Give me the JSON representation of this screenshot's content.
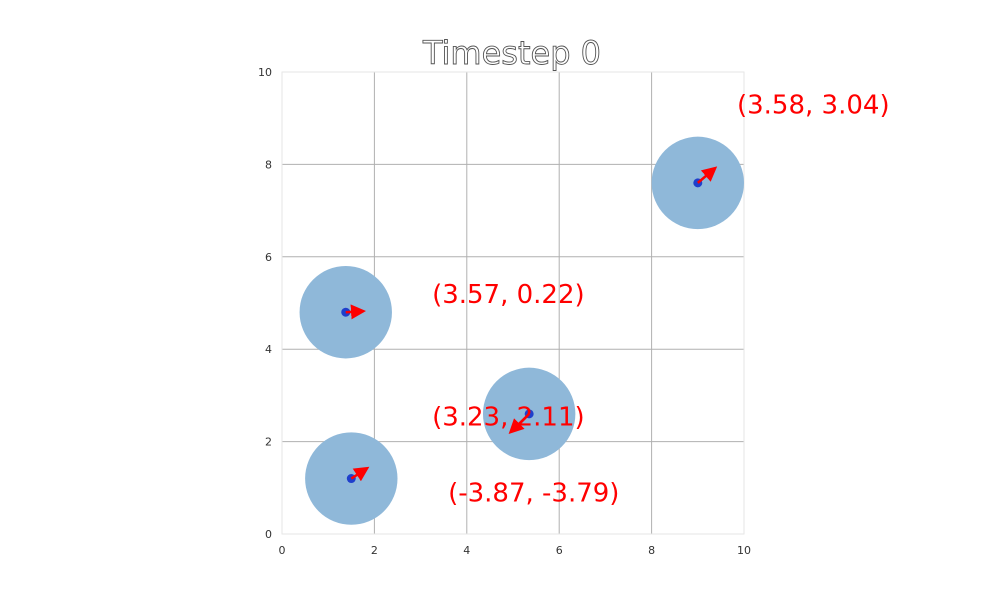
{
  "chart_data": {
    "type": "scatter",
    "title": "Timestep 0",
    "xlabel": "",
    "ylabel": "",
    "xlim": [
      0,
      10
    ],
    "ylim": [
      0,
      10
    ],
    "xticks": [
      "0",
      "2",
      "4",
      "6",
      "8",
      "10"
    ],
    "yticks": [
      "0",
      "2",
      "4",
      "6",
      "8",
      "10"
    ],
    "grid": true,
    "colors": {
      "disc": "#8fb8d9",
      "point": "#1f3fcc",
      "arrow": "#ff0000",
      "label": "#ff0000"
    },
    "radius": 1.0,
    "agents": [
      {
        "x": 9.0,
        "y": 7.6,
        "vx": 3.58,
        "vy": 3.04,
        "label": "(3.58, 3.04)",
        "label_x": 11.5,
        "label_y": 9.1
      },
      {
        "x": 1.38,
        "y": 4.8,
        "vx": 3.57,
        "vy": 0.22,
        "label": "(3.57, 0.22)",
        "label_x": 4.9,
        "label_y": 5.0
      },
      {
        "x": 5.35,
        "y": 2.6,
        "vx": -3.87,
        "vy": -3.79,
        "label": "(-3.87, -3.79)",
        "label_x": 5.45,
        "label_y": 0.7
      },
      {
        "x": 1.5,
        "y": 1.2,
        "vx": 3.23,
        "vy": 2.11,
        "label": "(3.23, 2.11)",
        "label_x": 4.9,
        "label_y": 2.35
      }
    ]
  }
}
